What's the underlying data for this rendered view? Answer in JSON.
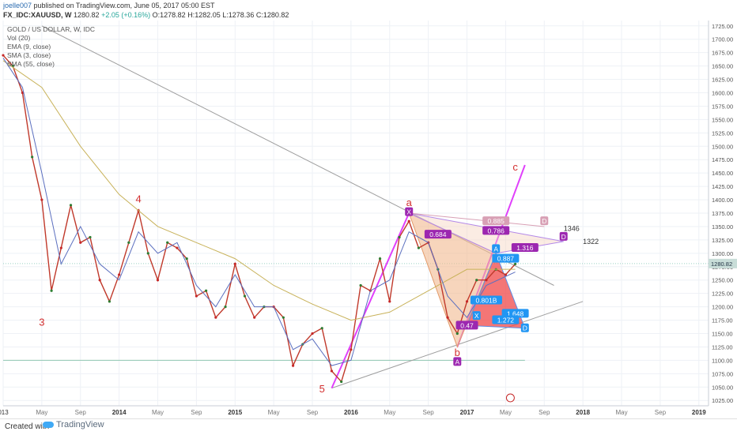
{
  "header": {
    "user": "joelle007",
    "published": "published on TradingView.com, June 05, 2017 05:00 EST",
    "symbol": "FX_IDC:XAUUSD, W",
    "last": "1280.82",
    "change": "+2.05 (+0.16%)",
    "open": "O:1278.82",
    "high": "H:1282.05",
    "low": "L:1278.36",
    "close": "C:1280.82"
  },
  "indicators": [
    "GOLD / US DOLLAR, W, IDC",
    "Vol (20)",
    "EMA (9, close)",
    "SMA (3, close)",
    "SMA (55, close)"
  ],
  "footer": {
    "created": "Created with",
    "brand": "TradingView"
  },
  "chart_data": {
    "type": "line",
    "title": "GOLD / US DOLLAR, W, IDC",
    "x_ticks": [
      "013",
      "May",
      "Sep",
      "2014",
      "May",
      "Sep",
      "2015",
      "May",
      "Sep",
      "2016",
      "May",
      "Sep",
      "2017",
      "May",
      "Sep",
      "2018",
      "May",
      "Sep",
      "2019"
    ],
    "ylim": [
      1015,
      1735
    ],
    "y_ticks": [
      1025,
      1050,
      1075,
      1100,
      1125,
      1150,
      1175,
      1200,
      1225,
      1250,
      1275,
      1300,
      1325,
      1350,
      1375,
      1400,
      1425,
      1450,
      1475,
      1500,
      1525,
      1550,
      1575,
      1600,
      1625,
      1650,
      1675,
      1700,
      1725
    ],
    "last_price": 1280.82,
    "horizontal_line": 1100,
    "series": [
      {
        "name": "GOLD / US DOLLAR",
        "color": "#c0392b",
        "x": [
          "2013-01",
          "2013-02",
          "2013-03",
          "2013-04",
          "2013-05",
          "2013-06",
          "2013-07",
          "2013-08",
          "2013-09",
          "2013-10",
          "2013-11",
          "2013-12",
          "2014-01",
          "2014-02",
          "2014-03",
          "2014-04",
          "2014-05",
          "2014-06",
          "2014-07",
          "2014-08",
          "2014-09",
          "2014-10",
          "2014-11",
          "2014-12",
          "2015-01",
          "2015-02",
          "2015-03",
          "2015-04",
          "2015-05",
          "2015-06",
          "2015-07",
          "2015-08",
          "2015-09",
          "2015-10",
          "2015-11",
          "2015-12",
          "2016-01",
          "2016-02",
          "2016-03",
          "2016-04",
          "2016-05",
          "2016-06",
          "2016-07",
          "2016-08",
          "2016-09",
          "2016-10",
          "2016-11",
          "2016-12",
          "2017-01",
          "2017-02",
          "2017-03",
          "2017-04",
          "2017-05",
          "2017-06"
        ],
        "values": [
          1670,
          1650,
          1600,
          1480,
          1400,
          1230,
          1310,
          1390,
          1320,
          1330,
          1250,
          1210,
          1260,
          1320,
          1380,
          1300,
          1250,
          1320,
          1310,
          1290,
          1220,
          1230,
          1180,
          1200,
          1280,
          1220,
          1180,
          1200,
          1200,
          1180,
          1090,
          1130,
          1150,
          1160,
          1080,
          1060,
          1120,
          1240,
          1230,
          1290,
          1210,
          1330,
          1360,
          1310,
          1320,
          1270,
          1180,
          1150,
          1210,
          1250,
          1250,
          1270,
          1260,
          1280
        ]
      },
      {
        "name": "SMA (55, close)",
        "color": "#c8b25a",
        "x": [
          "2013-01",
          "2013-05",
          "2013-09",
          "2014-01",
          "2014-05",
          "2014-09",
          "2015-01",
          "2015-05",
          "2015-09",
          "2016-01",
          "2016-05",
          "2016-09",
          "2017-01",
          "2017-06"
        ],
        "values": [
          1660,
          1610,
          1500,
          1410,
          1350,
          1320,
          1290,
          1240,
          1205,
          1175,
          1190,
          1230,
          1270,
          1270
        ]
      },
      {
        "name": "EMA (9, close)",
        "color": "#5b6fbf",
        "x": [
          "2013-01",
          "2013-03",
          "2013-05",
          "2013-07",
          "2013-09",
          "2013-11",
          "2014-01",
          "2014-03",
          "2014-05",
          "2014-07",
          "2014-09",
          "2014-11",
          "2015-01",
          "2015-03",
          "2015-05",
          "2015-07",
          "2015-09",
          "2015-11",
          "2016-01",
          "2016-03",
          "2016-05",
          "2016-07",
          "2016-09",
          "2016-11",
          "2017-01",
          "2017-03",
          "2017-06"
        ],
        "values": [
          1665,
          1610,
          1450,
          1280,
          1350,
          1280,
          1250,
          1340,
          1300,
          1320,
          1240,
          1200,
          1260,
          1200,
          1200,
          1120,
          1140,
          1090,
          1100,
          1230,
          1250,
          1340,
          1320,
          1220,
          1180,
          1240,
          1265
        ]
      }
    ],
    "annotations": [
      {
        "text": "3",
        "x": "2013-05",
        "y": 1165,
        "color": "#d32f2f"
      },
      {
        "text": "4",
        "x": "2014-03",
        "y": 1395,
        "color": "#d32f2f"
      },
      {
        "text": "5",
        "x": "2015-10",
        "y": 1040,
        "color": "#d32f2f"
      },
      {
        "text": "a",
        "x": "2016-07",
        "y": 1388,
        "color": "#d32f2f"
      },
      {
        "text": "b",
        "x": "2016-12",
        "y": 1108,
        "color": "#d32f2f"
      },
      {
        "text": "c",
        "x": "2017-06",
        "y": 1455,
        "color": "#d32f2f"
      }
    ],
    "pattern_labels": [
      {
        "text": "X",
        "x": "2016-07",
        "y": 1377,
        "color": "#9c27b0"
      },
      {
        "text": "A",
        "x": "2016-12",
        "y": 1097,
        "color": "#9c27b0"
      },
      {
        "text": "0.684",
        "x": "2016-10",
        "y": 1335,
        "color": "#9c27b0"
      },
      {
        "text": "0.885",
        "x": "2017-04",
        "y": 1360,
        "color": "#d8a0b5"
      },
      {
        "text": "0.786",
        "x": "2017-04",
        "y": 1342,
        "color": "#9c27b0"
      },
      {
        "text": "D",
        "x": "2017-09",
        "y": 1360,
        "color": "#d8a0b5"
      },
      {
        "text": "D",
        "x": "2017-11",
        "y": 1331,
        "color": "#9c27b0"
      },
      {
        "text": "1346",
        "x": "2017-11",
        "y": 1346,
        "color": "#333333"
      },
      {
        "text": "1322",
        "x": "2018-01",
        "y": 1322,
        "color": "#333333"
      },
      {
        "text": "A",
        "x": "2017-04",
        "y": 1308,
        "color": "#2196f3"
      },
      {
        "text": "0.887",
        "x": "2017-05",
        "y": 1290,
        "color": "#2196f3"
      },
      {
        "text": "1.316",
        "x": "2017-07",
        "y": 1310,
        "color": "#9c27b0"
      },
      {
        "text": "0.801B",
        "x": "2017-03",
        "y": 1212,
        "color": "#2196f3"
      },
      {
        "text": "X",
        "x": "2017-02",
        "y": 1183,
        "color": "#2196f3"
      },
      {
        "text": "0.47",
        "x": "2017-01",
        "y": 1165,
        "color": "#9c27b0"
      },
      {
        "text": "1.648",
        "x": "2017-06",
        "y": 1187,
        "color": "#2196f3"
      },
      {
        "text": "1.272",
        "x": "2017-05",
        "y": 1175,
        "color": "#2196f3"
      },
      {
        "text": "D",
        "x": "2017-07",
        "y": 1160,
        "color": "#2196f3"
      }
    ],
    "grid": true,
    "legend": "top-left"
  }
}
